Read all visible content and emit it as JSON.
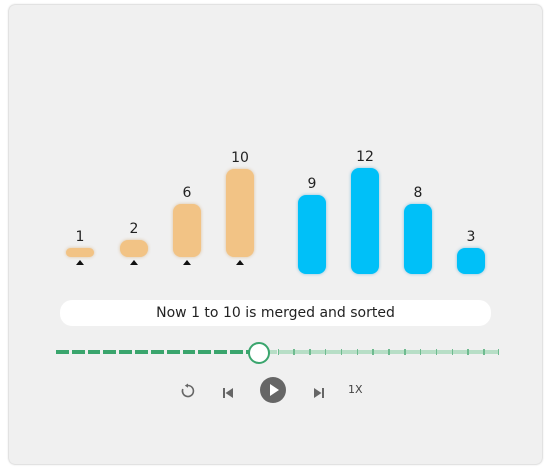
{
  "visualization": {
    "bars": [
      {
        "value": 1,
        "label": "1",
        "state": "sorted"
      },
      {
        "value": 2,
        "label": "2",
        "state": "sorted"
      },
      {
        "value": 6,
        "label": "6",
        "state": "sorted"
      },
      {
        "value": 10,
        "label": "10",
        "state": "sorted"
      },
      {
        "value": 9,
        "label": "9",
        "state": "pending"
      },
      {
        "value": 12,
        "label": "12",
        "state": "pending"
      },
      {
        "value": 8,
        "label": "8",
        "state": "pending"
      },
      {
        "value": 3,
        "label": "3",
        "state": "pending"
      }
    ],
    "colors": {
      "sorted": "#f2c385",
      "pending": "#00c0f8"
    }
  },
  "status": {
    "message": "Now 1 to 10 is merged and sorted"
  },
  "progress": {
    "step": 13,
    "total_steps": 28,
    "accent": "#3aa56d"
  },
  "controls": {
    "replay_icon": "replay-icon",
    "prev_icon": "skip-back-icon",
    "play_icon": "play-icon",
    "next_icon": "skip-forward-icon",
    "speed_label": "1X"
  }
}
